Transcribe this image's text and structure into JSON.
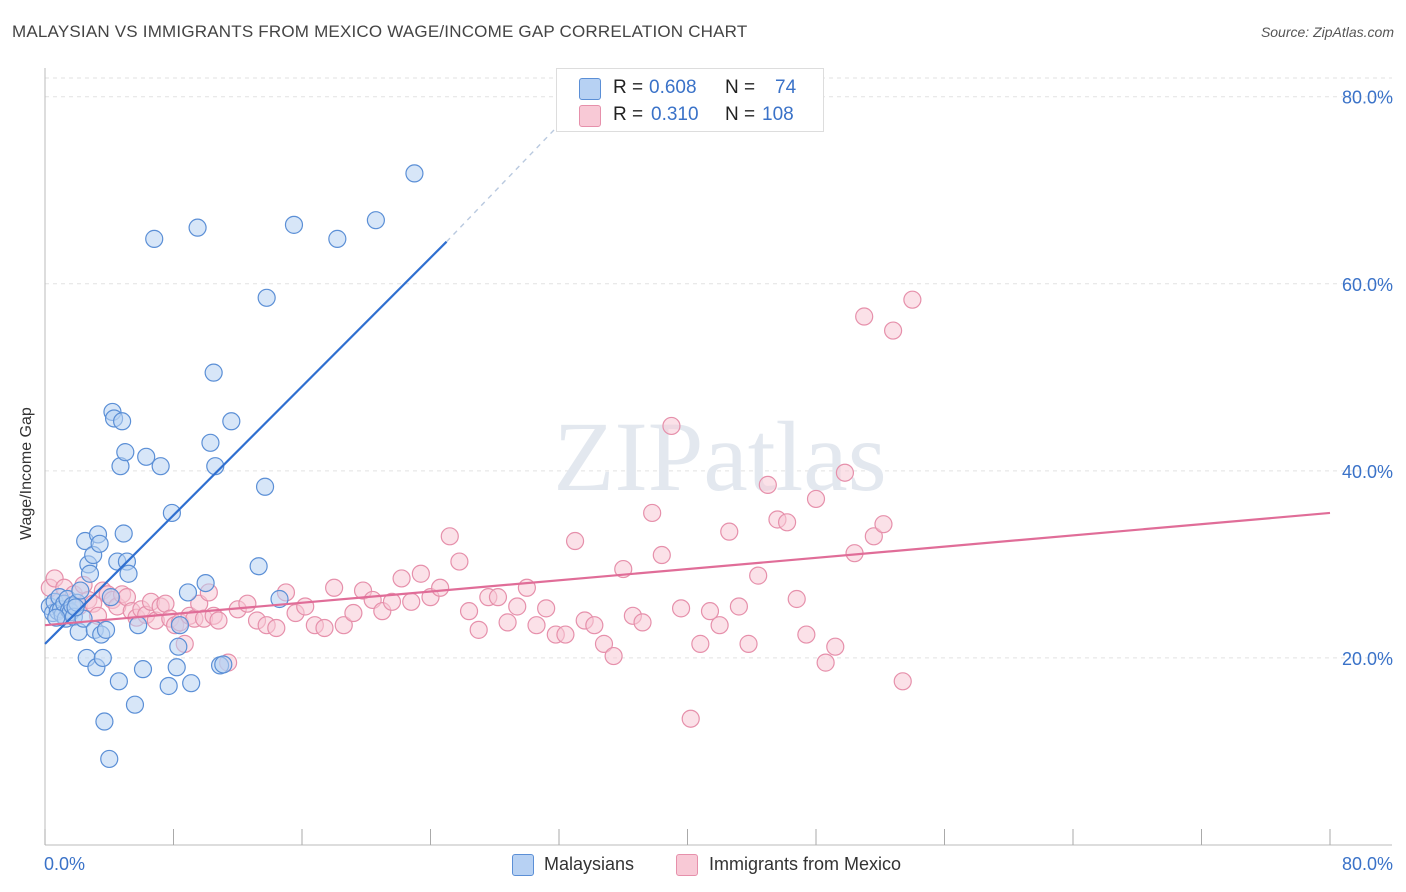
{
  "title": "MALAYSIAN VS IMMIGRANTS FROM MEXICO WAGE/INCOME GAP CORRELATION CHART",
  "source": "Source: ZipAtlas.com",
  "watermark": "ZIPatlas",
  "legend": {
    "rows": [
      {
        "r_label": "R =",
        "r_value": "0.608",
        "n_label": "N =",
        "n_value": "74"
      },
      {
        "r_label": "R =",
        "r_value": "0.310",
        "n_label": "N =",
        "n_value": "108"
      }
    ]
  },
  "bottom_legend": [
    "Malaysians",
    "Immigrants from Mexico"
  ],
  "colors": {
    "blue_fill": "#b7d1f3",
    "blue_stroke": "#5b8fd6",
    "blue_line": "#2f6fd0",
    "pink_fill": "#f8c9d6",
    "pink_stroke": "#e690ab",
    "pink_line": "#e06d98",
    "tick_label": "#3a72c8",
    "grid": "#e2e2e2"
  },
  "chart_data": {
    "type": "scatter",
    "title": "MALAYSIAN VS IMMIGRANTS FROM MEXICO WAGE/INCOME GAP CORRELATION CHART",
    "xlabel": "",
    "ylabel": "Wage/Income Gap",
    "xlim": [
      0,
      80
    ],
    "ylim": [
      0,
      82
    ],
    "x_tick_labels": [
      "0.0%",
      "80.0%"
    ],
    "y_ticks": [
      20,
      40,
      60,
      80
    ],
    "y_tick_labels": [
      "20.0%",
      "40.0%",
      "60.0%",
      "80.0%"
    ],
    "series": [
      {
        "name": "Malaysians",
        "r": 0.608,
        "n": 74,
        "trend": {
          "x0": 0,
          "y0": 21.5,
          "x1": 25,
          "y1": 64.5,
          "dash_x1": 32,
          "dash_y1": 77
        },
        "points": [
          [
            0.3,
            25.5
          ],
          [
            0.5,
            24.8
          ],
          [
            0.6,
            26
          ],
          [
            0.8,
            25
          ],
          [
            0.9,
            26.5
          ],
          [
            1.0,
            25.2
          ],
          [
            1.1,
            24.6
          ],
          [
            1.2,
            25.8
          ],
          [
            1.3,
            24.2
          ],
          [
            1.4,
            26.3
          ],
          [
            1.5,
            25.1
          ],
          [
            1.6,
            24.9
          ],
          [
            1.7,
            25.6
          ],
          [
            1.8,
            24.4
          ],
          [
            2.0,
            25.9
          ],
          [
            2.1,
            22.8
          ],
          [
            2.2,
            27.2
          ],
          [
            2.4,
            24.2
          ],
          [
            2.5,
            32.5
          ],
          [
            2.6,
            20
          ],
          [
            2.7,
            30
          ],
          [
            2.8,
            29
          ],
          [
            3.0,
            31
          ],
          [
            3.1,
            23
          ],
          [
            3.2,
            19
          ],
          [
            3.3,
            33.2
          ],
          [
            3.4,
            32.2
          ],
          [
            3.5,
            22.5
          ],
          [
            3.6,
            20
          ],
          [
            3.7,
            13.2
          ],
          [
            3.8,
            23
          ],
          [
            4.0,
            9.2
          ],
          [
            4.1,
            26.5
          ],
          [
            4.2,
            46.3
          ],
          [
            4.3,
            45.6
          ],
          [
            4.5,
            30.3
          ],
          [
            4.6,
            17.5
          ],
          [
            4.7,
            40.5
          ],
          [
            4.8,
            45.3
          ],
          [
            4.9,
            33.3
          ],
          [
            5.0,
            42
          ],
          [
            5.1,
            30.3
          ],
          [
            5.2,
            29
          ],
          [
            5.6,
            15
          ],
          [
            5.8,
            23.5
          ],
          [
            6.1,
            18.8
          ],
          [
            6.3,
            41.5
          ],
          [
            6.8,
            64.8
          ],
          [
            7.2,
            40.5
          ],
          [
            7.7,
            17
          ],
          [
            7.9,
            35.5
          ],
          [
            8.2,
            19
          ],
          [
            8.3,
            21.2
          ],
          [
            8.4,
            23.5
          ],
          [
            8.9,
            27
          ],
          [
            9.1,
            17.3
          ],
          [
            9.5,
            66
          ],
          [
            10.0,
            28
          ],
          [
            10.3,
            43
          ],
          [
            10.5,
            50.5
          ],
          [
            10.6,
            40.5
          ],
          [
            10.9,
            19.2
          ],
          [
            11.1,
            19.3
          ],
          [
            11.6,
            45.3
          ],
          [
            13.3,
            29.8
          ],
          [
            13.7,
            38.3
          ],
          [
            13.8,
            58.5
          ],
          [
            14.6,
            26.3
          ],
          [
            15.5,
            66.3
          ],
          [
            18.2,
            64.8
          ],
          [
            20.6,
            66.8
          ],
          [
            23.0,
            71.8
          ],
          [
            1.9,
            25.4
          ],
          [
            0.7,
            24.3
          ]
        ]
      },
      {
        "name": "Immigrants from Mexico",
        "r": 0.31,
        "n": 108,
        "trend": {
          "x0": 0,
          "y0": 23.5,
          "x1": 80,
          "y1": 35.5
        },
        "points": [
          [
            0.3,
            27.5
          ],
          [
            0.6,
            28.5
          ],
          [
            0.9,
            26
          ],
          [
            1.2,
            27.5
          ],
          [
            1.5,
            25.2
          ],
          [
            1.8,
            26.8
          ],
          [
            2.1,
            25.5
          ],
          [
            2.4,
            27.8
          ],
          [
            2.7,
            26.2
          ],
          [
            3.0,
            25.8
          ],
          [
            3.3,
            24.5
          ],
          [
            3.6,
            27.2
          ],
          [
            3.9,
            26.8
          ],
          [
            4.2,
            26.2
          ],
          [
            4.5,
            25.5
          ],
          [
            4.8,
            26.8
          ],
          [
            5.1,
            26.5
          ],
          [
            5.4,
            25
          ],
          [
            5.7,
            24.3
          ],
          [
            6.0,
            25.2
          ],
          [
            6.3,
            24.6
          ],
          [
            6.6,
            26
          ],
          [
            6.9,
            24
          ],
          [
            7.2,
            25.5
          ],
          [
            7.5,
            25.8
          ],
          [
            7.8,
            24.2
          ],
          [
            8.1,
            23.5
          ],
          [
            8.4,
            23.8
          ],
          [
            8.7,
            21.5
          ],
          [
            9.0,
            24.5
          ],
          [
            9.3,
            24.2
          ],
          [
            9.6,
            25.8
          ],
          [
            9.9,
            24.2
          ],
          [
            10.2,
            27
          ],
          [
            10.5,
            24.5
          ],
          [
            10.8,
            24
          ],
          [
            11.4,
            19.5
          ],
          [
            12.0,
            25.2
          ],
          [
            12.6,
            25.8
          ],
          [
            13.2,
            24
          ],
          [
            13.8,
            23.5
          ],
          [
            14.4,
            23.2
          ],
          [
            15.0,
            27
          ],
          [
            15.6,
            24.8
          ],
          [
            16.2,
            25.5
          ],
          [
            16.8,
            23.5
          ],
          [
            17.4,
            23.2
          ],
          [
            18.0,
            27.5
          ],
          [
            18.6,
            23.5
          ],
          [
            19.2,
            24.8
          ],
          [
            19.8,
            27.2
          ],
          [
            20.4,
            26.2
          ],
          [
            21.0,
            25
          ],
          [
            21.6,
            26
          ],
          [
            22.2,
            28.5
          ],
          [
            22.8,
            26
          ],
          [
            23.4,
            29
          ],
          [
            24.0,
            26.5
          ],
          [
            24.6,
            27.5
          ],
          [
            25.2,
            33
          ],
          [
            25.8,
            30.3
          ],
          [
            26.4,
            25
          ],
          [
            27.0,
            23
          ],
          [
            27.6,
            26.5
          ],
          [
            28.2,
            26.5
          ],
          [
            28.8,
            23.8
          ],
          [
            29.4,
            25.5
          ],
          [
            30.0,
            27.5
          ],
          [
            30.6,
            23.5
          ],
          [
            31.2,
            25.3
          ],
          [
            31.8,
            22.5
          ],
          [
            32.4,
            22.5
          ],
          [
            33.0,
            32.5
          ],
          [
            33.6,
            24
          ],
          [
            34.2,
            23.5
          ],
          [
            34.8,
            21.5
          ],
          [
            35.4,
            20.2
          ],
          [
            36.0,
            29.5
          ],
          [
            36.6,
            24.5
          ],
          [
            37.2,
            23.8
          ],
          [
            37.8,
            35.5
          ],
          [
            38.4,
            31
          ],
          [
            39.0,
            44.8
          ],
          [
            39.6,
            25.3
          ],
          [
            40.2,
            13.5
          ],
          [
            40.8,
            21.5
          ],
          [
            41.4,
            25
          ],
          [
            42.0,
            23.5
          ],
          [
            42.6,
            33.5
          ],
          [
            43.2,
            25.5
          ],
          [
            43.8,
            21.5
          ],
          [
            44.4,
            28.8
          ],
          [
            45.0,
            38.5
          ],
          [
            45.6,
            34.8
          ],
          [
            46.2,
            34.5
          ],
          [
            46.8,
            26.3
          ],
          [
            47.4,
            22.5
          ],
          [
            48.0,
            37
          ],
          [
            48.6,
            19.5
          ],
          [
            49.2,
            21.2
          ],
          [
            49.8,
            39.8
          ],
          [
            50.4,
            31.2
          ],
          [
            51.0,
            56.5
          ],
          [
            51.6,
            33
          ],
          [
            52.2,
            34.3
          ],
          [
            52.8,
            55
          ],
          [
            53.4,
            17.5
          ],
          [
            54.0,
            58.3
          ]
        ]
      }
    ]
  }
}
